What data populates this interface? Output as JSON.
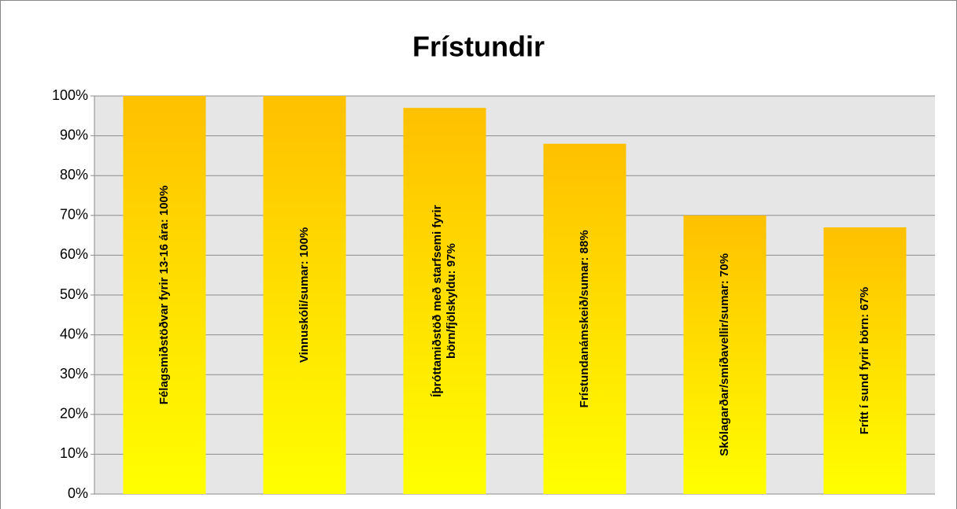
{
  "chart_data": {
    "type": "bar",
    "title": "Frístundir",
    "values": [
      100,
      100,
      97,
      88,
      70,
      67
    ],
    "value_labels": [
      "Félagsmiðstöðvar fyrir 13-16 ára: 100%",
      "Vinnuskóli/sumar: 100%",
      "Íþróttamiðstöð með starfsemi fyrir börn/fjölskyldu: 97%",
      "Frístundanámskeið/sumar: 88%",
      "Skólagarðar/smíðavellir/sumar: 70%",
      "Frítt í sund fyrir börn: 67%"
    ],
    "color": [
      "#ffff00",
      "#ffc000"
    ],
    "ylim": [
      0,
      100
    ],
    "yticks": [
      {
        "value": 0,
        "label": "0%"
      },
      {
        "value": 10,
        "label": "10%"
      },
      {
        "value": 20,
        "label": "20%"
      },
      {
        "value": 30,
        "label": "30%"
      },
      {
        "value": 40,
        "label": "40%"
      },
      {
        "value": 50,
        "label": "50%"
      },
      {
        "value": 60,
        "label": "60%"
      },
      {
        "value": 70,
        "label": "70%"
      },
      {
        "value": 80,
        "label": "80%"
      },
      {
        "value": 90,
        "label": "90%"
      },
      {
        "value": 100,
        "label": "100%"
      }
    ],
    "grid": true
  }
}
